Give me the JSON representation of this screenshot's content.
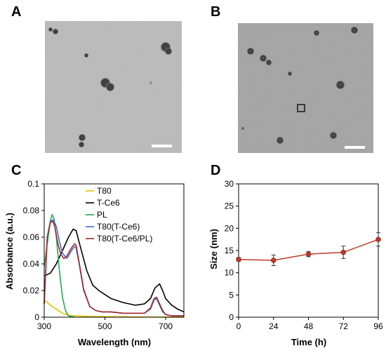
{
  "panels": {
    "a": "A",
    "b": "B",
    "c": "C",
    "d": "D"
  },
  "colors": {
    "t80": "#e6c100",
    "tce6": "#000000",
    "pl": "#22aa55",
    "t80_tce6": "#3a6fd6",
    "t80_tce6_pl": "#a02a2a",
    "size_line": "#c0392b"
  },
  "chart_data": [
    {
      "type": "line",
      "title": "",
      "xlabel": "Wavelength (nm)",
      "ylabel": "Absorbance (a.u.)",
      "xlim": [
        300,
        760
      ],
      "ylim": [
        0,
        0.1
      ],
      "xticks": [
        "300",
        "500",
        "700"
      ],
      "xtick_values": [
        300,
        500,
        700
      ],
      "yticks": [
        "0",
        "0.02",
        "0.04",
        "0.06",
        "0.08",
        "0.1"
      ],
      "ytick_values": [
        0,
        0.02,
        0.04,
        0.06,
        0.08,
        0.1
      ],
      "legend_placement": "top-right",
      "series": [
        {
          "name": "T80",
          "color_key": "t80",
          "x": [
            300,
            320,
            340,
            360,
            380,
            400,
            440,
            500,
            600,
            700,
            760
          ],
          "y": [
            0.013,
            0.009,
            0.006,
            0.003,
            0.0015,
            0.001,
            0.0007,
            0.0004,
            0.0002,
            0.0001,
            0.0001
          ]
        },
        {
          "name": "T-Ce6",
          "color_key": "tce6",
          "x": [
            300,
            320,
            340,
            360,
            380,
            395,
            405,
            420,
            440,
            460,
            480,
            500,
            520,
            560,
            600,
            630,
            650,
            665,
            680,
            690,
            700,
            720,
            740,
            760
          ],
          "y": [
            0.031,
            0.033,
            0.04,
            0.05,
            0.06,
            0.066,
            0.065,
            0.052,
            0.035,
            0.024,
            0.02,
            0.017,
            0.014,
            0.011,
            0.009,
            0.01,
            0.014,
            0.022,
            0.025,
            0.02,
            0.014,
            0.009,
            0.006,
            0.004
          ]
        },
        {
          "name": "PL",
          "color_key": "pl",
          "x": [
            300,
            310,
            320,
            326,
            332,
            340,
            350,
            360,
            370,
            380,
            400
          ],
          "y": [
            0.038,
            0.055,
            0.072,
            0.077,
            0.074,
            0.06,
            0.035,
            0.015,
            0.005,
            0.001,
            0.0
          ]
        },
        {
          "name": "T80(T-Ce6)",
          "color_key": "t80_tce6",
          "x": [
            300,
            310,
            320,
            330,
            340,
            350,
            360,
            375,
            390,
            400,
            405,
            415,
            430,
            450,
            470,
            490,
            520,
            560,
            600,
            630,
            650,
            662,
            670,
            680,
            690,
            700,
            720,
            760
          ],
          "y": [
            0.01,
            0.06,
            0.072,
            0.073,
            0.068,
            0.057,
            0.048,
            0.044,
            0.05,
            0.053,
            0.052,
            0.04,
            0.02,
            0.008,
            0.005,
            0.004,
            0.004,
            0.003,
            0.003,
            0.003,
            0.006,
            0.013,
            0.014,
            0.009,
            0.004,
            0.002,
            0.001,
            0.001
          ]
        },
        {
          "name": "T80(T-Ce6/PL)",
          "color_key": "t80_tce6_pl",
          "x": [
            300,
            310,
            320,
            328,
            335,
            345,
            355,
            365,
            375,
            390,
            400,
            405,
            415,
            430,
            450,
            470,
            490,
            520,
            560,
            600,
            630,
            650,
            662,
            670,
            680,
            690,
            700,
            720,
            760
          ],
          "y": [
            0.01,
            0.06,
            0.071,
            0.072,
            0.068,
            0.055,
            0.047,
            0.044,
            0.046,
            0.052,
            0.055,
            0.054,
            0.041,
            0.021,
            0.008,
            0.005,
            0.004,
            0.004,
            0.003,
            0.003,
            0.003,
            0.007,
            0.014,
            0.015,
            0.01,
            0.005,
            0.002,
            0.001,
            0.001
          ]
        }
      ]
    },
    {
      "type": "line",
      "title": "",
      "xlabel": "Time (h)",
      "ylabel": "Size (nm)",
      "xlim": [
        0,
        96
      ],
      "ylim": [
        0,
        30
      ],
      "xticks": [
        "0",
        "24",
        "48",
        "72",
        "96"
      ],
      "xtick_values": [
        0,
        24,
        48,
        72,
        96
      ],
      "yticks": [
        "0",
        "5",
        "10",
        "15",
        "20",
        "25",
        "30"
      ],
      "ytick_values": [
        0,
        5,
        10,
        15,
        20,
        25,
        30
      ],
      "series": [
        {
          "x": [
            0,
            24,
            48,
            72,
            96
          ],
          "y": [
            13.0,
            12.8,
            14.2,
            14.6,
            17.5
          ],
          "error": [
            0.4,
            1.2,
            0.6,
            1.4,
            1.5
          ]
        }
      ]
    }
  ]
}
